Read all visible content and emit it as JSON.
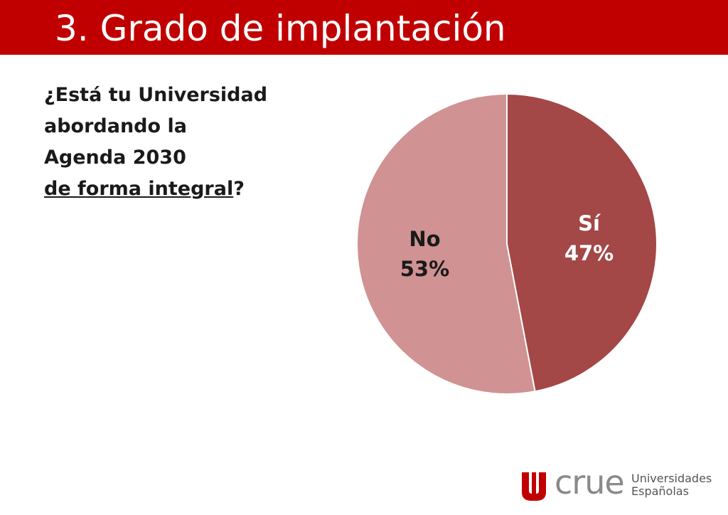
{
  "slide": {
    "title": "3. Grado de implantación",
    "question": {
      "line1": "¿Está tu Universidad",
      "line2": "abordando la",
      "line3": "Agenda 2030",
      "line4_underlined": "de forma integral",
      "line4_suffix": "?"
    }
  },
  "chart_data": {
    "type": "pie",
    "slices": [
      {
        "label": "Sí",
        "value": 47,
        "display": "47%",
        "color": "#a44747"
      },
      {
        "label": "No",
        "value": 53,
        "display": "53%",
        "color": "#d09292"
      }
    ]
  },
  "logo": {
    "name": "crue",
    "line1": "Universidades",
    "line2": "Españolas",
    "mark_color": "#c00000"
  }
}
